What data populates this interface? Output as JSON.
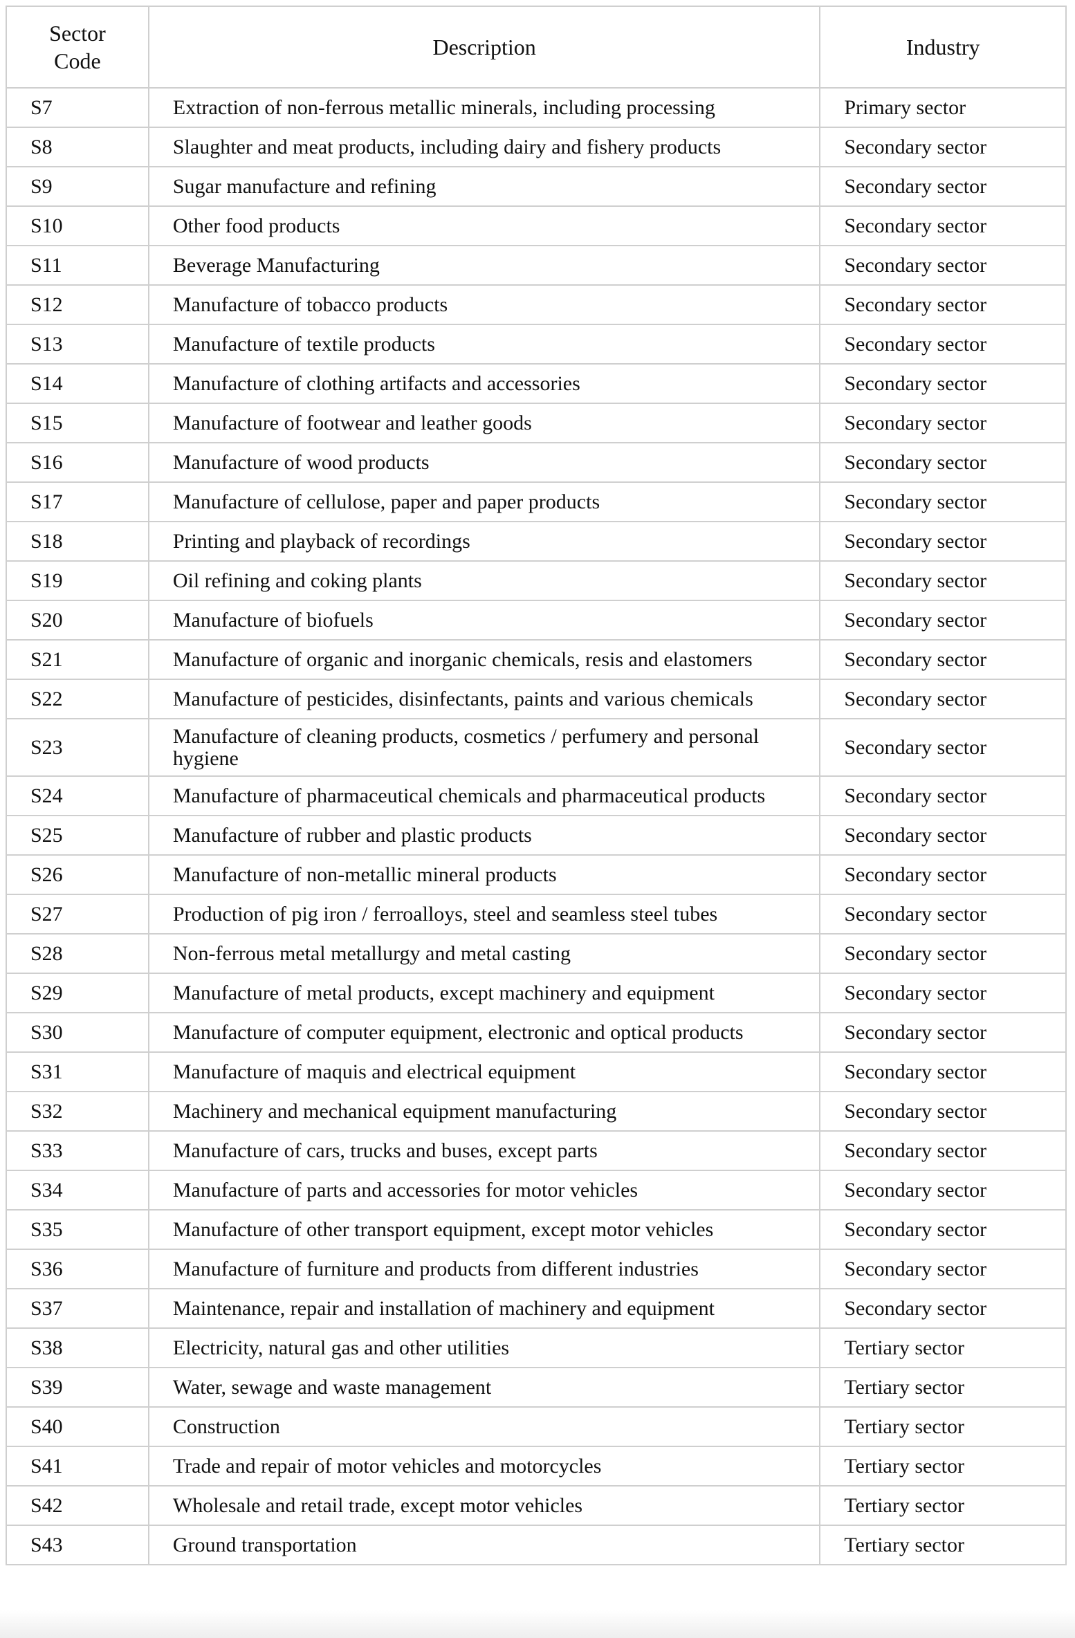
{
  "table": {
    "headers": {
      "code": "Sector\nCode",
      "description": "Description",
      "industry": "Industry"
    },
    "rows": [
      {
        "code": "S7",
        "description": "Extraction of non-ferrous metallic minerals, including processing",
        "industry": "Primary sector"
      },
      {
        "code": "S8",
        "description": "Slaughter and meat products, including dairy and fishery products",
        "industry": "Secondary sector"
      },
      {
        "code": "S9",
        "description": "Sugar manufacture and refining",
        "industry": "Secondary sector"
      },
      {
        "code": "S10",
        "description": "Other food products",
        "industry": "Secondary sector"
      },
      {
        "code": "S11",
        "description": "Beverage Manufacturing",
        "industry": "Secondary sector"
      },
      {
        "code": "S12",
        "description": "Manufacture of tobacco products",
        "industry": "Secondary sector"
      },
      {
        "code": "S13",
        "description": "Manufacture of textile products",
        "industry": "Secondary sector"
      },
      {
        "code": "S14",
        "description": "Manufacture of clothing artifacts and accessories",
        "industry": "Secondary sector"
      },
      {
        "code": "S15",
        "description": "Manufacture of footwear and leather goods",
        "industry": "Secondary sector"
      },
      {
        "code": "S16",
        "description": "Manufacture of wood products",
        "industry": "Secondary sector"
      },
      {
        "code": "S17",
        "description": "Manufacture of cellulose, paper and paper products",
        "industry": "Secondary sector"
      },
      {
        "code": "S18",
        "description": "Printing and playback of recordings",
        "industry": "Secondary sector"
      },
      {
        "code": "S19",
        "description": "Oil refining and coking plants",
        "industry": "Secondary sector"
      },
      {
        "code": "S20",
        "description": "Manufacture of biofuels",
        "industry": "Secondary sector"
      },
      {
        "code": "S21",
        "description": "Manufacture of organic and inorganic chemicals, resis and elastomers",
        "industry": "Secondary sector"
      },
      {
        "code": "S22",
        "description": "Manufacture of pesticides, disinfectants, paints and various chemicals",
        "industry": "Secondary sector"
      },
      {
        "code": "S23",
        "description": "Manufacture of cleaning products, cosmetics / perfumery and personal hygiene",
        "industry": "Secondary sector"
      },
      {
        "code": "S24",
        "description": "Manufacture of pharmaceutical chemicals and pharmaceutical products",
        "industry": "Secondary sector"
      },
      {
        "code": "S25",
        "description": "Manufacture of rubber and plastic products",
        "industry": "Secondary sector"
      },
      {
        "code": "S26",
        "description": "Manufacture of non-metallic mineral products",
        "industry": "Secondary sector"
      },
      {
        "code": "S27",
        "description": "Production of pig iron / ferroalloys, steel and seamless steel tubes",
        "industry": "Secondary sector"
      },
      {
        "code": "S28",
        "description": "Non-ferrous metal metallurgy and metal casting",
        "industry": "Secondary sector"
      },
      {
        "code": "S29",
        "description": "Manufacture of metal products, except machinery and equipment",
        "industry": "Secondary sector"
      },
      {
        "code": "S30",
        "description": "Manufacture of computer equipment, electronic and optical products",
        "industry": "Secondary sector"
      },
      {
        "code": "S31",
        "description": "Manufacture of maquis and electrical equipment",
        "industry": "Secondary sector"
      },
      {
        "code": "S32",
        "description": "Machinery and mechanical equipment manufacturing",
        "industry": "Secondary sector"
      },
      {
        "code": "S33",
        "description": "Manufacture of cars, trucks and buses, except parts",
        "industry": "Secondary sector"
      },
      {
        "code": "S34",
        "description": "Manufacture of parts and accessories for motor vehicles",
        "industry": "Secondary sector"
      },
      {
        "code": "S35",
        "description": "Manufacture of other transport equipment, except motor vehicles",
        "industry": "Secondary sector"
      },
      {
        "code": "S36",
        "description": "Manufacture of furniture and products from different industries",
        "industry": "Secondary sector"
      },
      {
        "code": "S37",
        "description": "Maintenance, repair and installation of machinery and equipment",
        "industry": "Secondary sector"
      },
      {
        "code": "S38",
        "description": "Electricity, natural gas and other utilities",
        "industry": "Tertiary sector"
      },
      {
        "code": "S39",
        "description": "Water, sewage and waste management",
        "industry": "Tertiary sector"
      },
      {
        "code": "S40",
        "description": "Construction",
        "industry": "Tertiary sector"
      },
      {
        "code": "S41",
        "description": "Trade and repair of motor vehicles and motorcycles",
        "industry": "Tertiary sector"
      },
      {
        "code": "S42",
        "description": "Wholesale and retail trade, except motor vehicles",
        "industry": "Tertiary sector"
      },
      {
        "code": "S43",
        "description": "Ground transportation",
        "industry": "Tertiary sector"
      }
    ]
  }
}
